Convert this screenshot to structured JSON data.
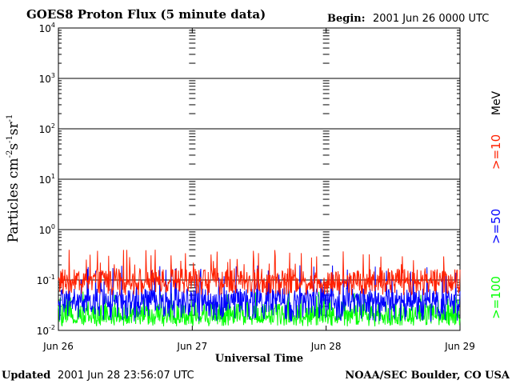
{
  "chart_data": {
    "type": "line",
    "title": "GOES8 Proton Flux (5 minute data)",
    "begin_label": "Begin:",
    "begin_value": "2001 Jun 26 0000 UTC",
    "ylabel_base": "Particles cm",
    "ylabel_exp1": "-2",
    "ylabel_s": "s",
    "ylabel_exp2": "-1",
    "ylabel_sr": "sr",
    "ylabel_exp3": "-1",
    "xlabel": "Universal Time",
    "y_scale": "log",
    "ylim": [
      0.01,
      10000
    ],
    "y_ticks": [
      {
        "base": "10",
        "exp": "-2"
      },
      {
        "base": "10",
        "exp": "-1"
      },
      {
        "base": "10",
        "exp": "0"
      },
      {
        "base": "10",
        "exp": "1"
      },
      {
        "base": "10",
        "exp": "2"
      },
      {
        "base": "10",
        "exp": "3"
      },
      {
        "base": "10",
        "exp": "4"
      }
    ],
    "x_ticks": [
      "Jun 26",
      "Jun 27",
      "Jun 28",
      "Jun 29"
    ],
    "xlim_days": [
      0,
      3
    ],
    "energy_unit": "MeV",
    "series": [
      {
        "name": ">=10",
        "color": "#ff2000",
        "typical": 0.1,
        "peak_max": 0.4,
        "floor": 0.05
      },
      {
        "name": ">=50",
        "color": "#0000ff",
        "typical": 0.04,
        "peak_max": 0.2,
        "floor": 0.015
      },
      {
        "name": ">=100",
        "color": "#00ff00",
        "typical": 0.02,
        "peak_max": 0.06,
        "floor": 0.012
      }
    ]
  },
  "footer": {
    "updated_label": "Updated",
    "updated_value": "2001 Jun 28 23:56:07 UTC",
    "credit": "NOAA/SEC Boulder, CO USA"
  }
}
